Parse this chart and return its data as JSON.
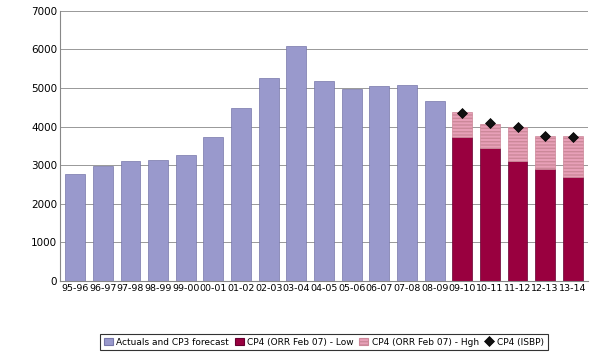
{
  "categories": [
    "95-96",
    "96-97",
    "97-98",
    "98-99",
    "99-00",
    "00-01",
    "01-02",
    "02-03",
    "03-04",
    "04-05",
    "05-06",
    "06-07",
    "07-08",
    "08-09",
    "09-10",
    "10-11",
    "11-12",
    "12-13",
    "13-14"
  ],
  "actuals_cp3": [
    2780,
    2970,
    3100,
    3130,
    3260,
    3720,
    4470,
    5270,
    6080,
    5180,
    4970,
    5050,
    5080,
    4660,
    null,
    null,
    null,
    null,
    null
  ],
  "cp4_low": [
    null,
    null,
    null,
    null,
    null,
    null,
    null,
    null,
    null,
    null,
    null,
    null,
    null,
    null,
    3720,
    3440,
    3100,
    2900,
    2700
  ],
  "cp4_high_extra": [
    null,
    null,
    null,
    null,
    null,
    null,
    null,
    null,
    null,
    null,
    null,
    null,
    null,
    null,
    650,
    630,
    900,
    850,
    1050
  ],
  "cp4_isbp": [
    null,
    null,
    null,
    null,
    null,
    null,
    null,
    null,
    null,
    null,
    null,
    null,
    null,
    null,
    4350,
    4080,
    3980,
    3750,
    3720
  ],
  "bar_color_actuals": "#9999cc",
  "bar_color_actuals_edge": "#7777aa",
  "bar_color_low": "#99003f",
  "bar_color_low_edge": "#660030",
  "bar_color_high": "#e8a0b8",
  "bar_color_high_edge": "#cc8899",
  "isbp_marker_color": "#111111",
  "ylim": [
    0,
    7000
  ],
  "yticks": [
    0,
    1000,
    2000,
    3000,
    4000,
    5000,
    6000,
    7000
  ],
  "legend_labels": [
    "Actuals and CP3 forecast",
    "CP4 (ORR Feb 07) - Low",
    "CP4 (ORR Feb 07) - Hgh",
    "CP4 (ISBP)"
  ],
  "background_color": "#ffffff",
  "grid_color": "#aaaaaa"
}
